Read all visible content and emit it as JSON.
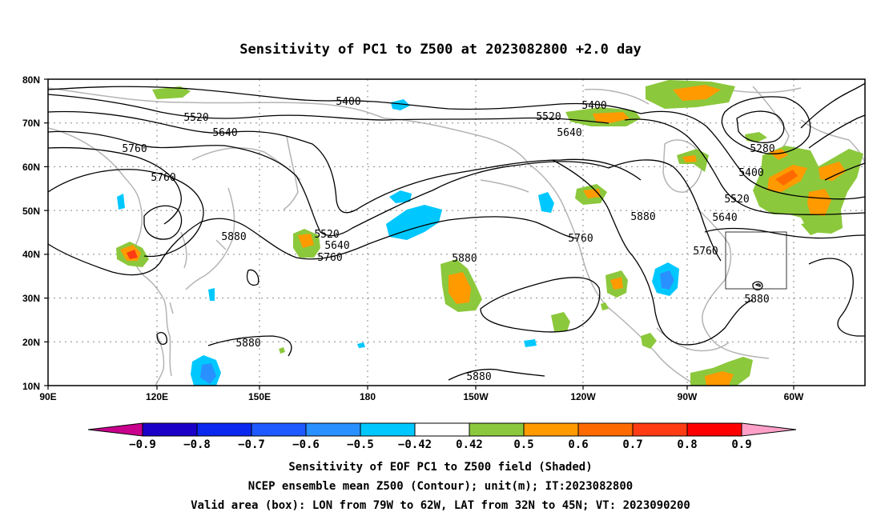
{
  "title": "Sensitivity of PC1 to Z500 at 2023082800 +2.0 day",
  "lat_labels": [
    "80N",
    "70N",
    "60N",
    "50N",
    "40N",
    "30N",
    "20N",
    "10N"
  ],
  "lon_labels": [
    "90E",
    "120E",
    "150E",
    "180",
    "150W",
    "120W",
    "90W",
    "60W"
  ],
  "contour_labels": [
    "5400",
    "5520",
    "5640",
    "5760",
    "5760",
    "5880",
    "5400",
    "5520",
    "5640",
    "5520",
    "5640",
    "5760",
    "5880",
    "5880",
    "5880",
    "5400",
    "5520",
    "5640",
    "5880",
    "5760",
    "5280",
    "5400",
    "5520",
    "5640",
    "5760",
    "5880"
  ],
  "colorbar": {
    "labels": [
      "-0.9",
      "-0.8",
      "-0.7",
      "-0.6",
      "-0.5",
      "-0.42",
      "0.42",
      "0.5",
      "0.6",
      "0.7",
      "0.8",
      "0.9"
    ],
    "colors": [
      "#1a00c8",
      "#0a28f0",
      "#1e5aff",
      "#2891ff",
      "#00c8ff",
      "#ffffff",
      "#8cc83c",
      "#ff9a00",
      "#ff6a00",
      "#ff3c14",
      "#ff0000"
    ],
    "low_end_color": "#c8008c",
    "high_end_color": "#ffa0c8"
  },
  "footer": [
    "Sensitivity of EOF PC1 to Z500 field (Shaded)",
    "NCEP ensemble mean Z500 (Contour); unit(m); IT:2023082800",
    "Valid area (box): LON from 79W to 62W, LAT from 32N to 45N; VT: 2023090200"
  ]
}
